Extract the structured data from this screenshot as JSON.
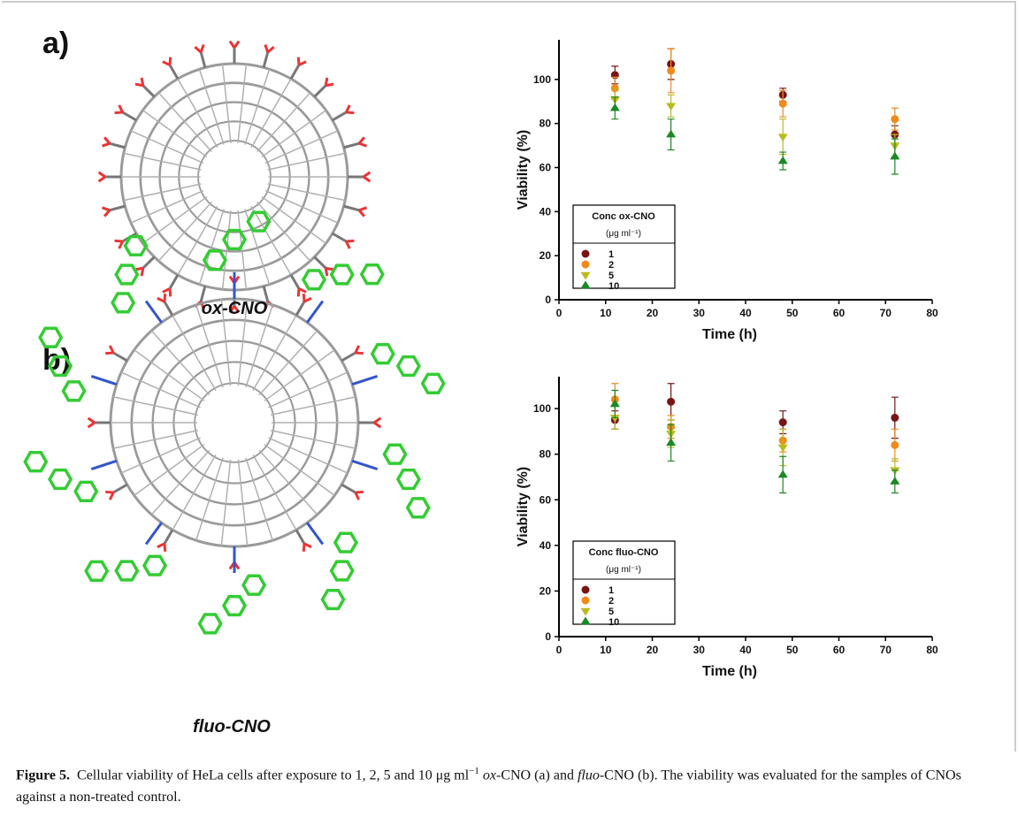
{
  "panels": [
    {
      "label": "a)",
      "molecule_label": "ox-CNO"
    },
    {
      "label": "b)",
      "molecule_label": "fluo-CNO"
    }
  ],
  "chart_data": [
    {
      "type": "scatter",
      "x_label": "Time (h)",
      "y_label": "Viability (%)",
      "legend_title": "Conc ox-CNO",
      "legend_subtitle": "(μg ml⁻¹)",
      "x": [
        12,
        24,
        48,
        72
      ],
      "xlim": [
        0,
        80
      ],
      "xticks": [
        0,
        10,
        20,
        30,
        40,
        50,
        60,
        70,
        80
      ],
      "ylim": [
        0,
        118
      ],
      "yticks": [
        0,
        20,
        40,
        60,
        80,
        100
      ],
      "series": [
        {
          "name": "1",
          "color": "#7a1414",
          "marker": "circle",
          "values": [
            102,
            107,
            93,
            75
          ],
          "errors": [
            4,
            7,
            3,
            4
          ]
        },
        {
          "name": "2",
          "color": "#f08a1c",
          "marker": "circle",
          "values": [
            96,
            104,
            89,
            82
          ],
          "errors": [
            5,
            10,
            6,
            5
          ]
        },
        {
          "name": "5",
          "color": "#b8bc1c",
          "marker": "triangle-down",
          "values": [
            91,
            88,
            74,
            70
          ],
          "errors": [
            5,
            5,
            8,
            5
          ]
        },
        {
          "name": "10",
          "color": "#1a8a24",
          "marker": "triangle-up",
          "values": [
            87,
            75,
            63,
            65
          ],
          "errors": [
            5,
            7,
            4,
            8
          ]
        }
      ]
    },
    {
      "type": "scatter",
      "x_label": "Time (h)",
      "y_label": "Viability (%)",
      "legend_title": "Conc fluo-CNO",
      "legend_subtitle": "(μg ml⁻¹)",
      "x": [
        12,
        24,
        48,
        72
      ],
      "xlim": [
        0,
        80
      ],
      "xticks": [
        0,
        10,
        20,
        30,
        40,
        50,
        60,
        70,
        80
      ],
      "ylim": [
        0,
        114
      ],
      "yticks": [
        0,
        20,
        40,
        60,
        80,
        100
      ],
      "series": [
        {
          "name": "1",
          "color": "#7a1414",
          "marker": "circle",
          "values": [
            95,
            103,
            94,
            96
          ],
          "errors": [
            4,
            8,
            5,
            9
          ]
        },
        {
          "name": "2",
          "color": "#f08a1c",
          "marker": "circle",
          "values": [
            104,
            92,
            86,
            84
          ],
          "errors": [
            7,
            5,
            5,
            7
          ]
        },
        {
          "name": "5",
          "color": "#b8bc1c",
          "marker": "triangle-down",
          "values": [
            96,
            89,
            83,
            73
          ],
          "errors": [
            5,
            6,
            8,
            5
          ]
        },
        {
          "name": "10",
          "color": "#1a8a24",
          "marker": "triangle-up",
          "values": [
            102,
            85,
            71,
            68
          ],
          "errors": [
            6,
            8,
            8,
            5
          ]
        }
      ]
    }
  ],
  "caption": {
    "label": "Figure 5.",
    "parts": [
      "Cellular viability of HeLa cells after exposure to 1, 2, 5 and 10 μg ml",
      "−1",
      " ox",
      "-CNO (a) and ",
      "fluo",
      "-CNO (b). The viability was evaluated for the samples of CNOs against a non-treated control."
    ]
  }
}
